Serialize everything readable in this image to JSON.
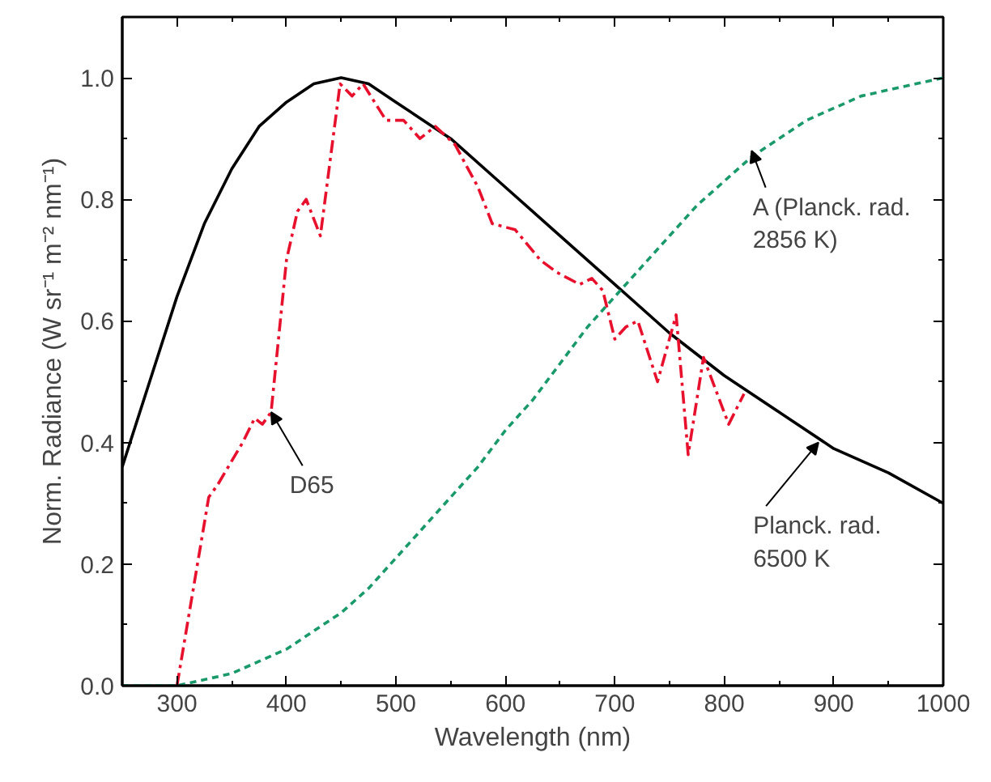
{
  "chart_data": {
    "type": "line",
    "xlabel": "Wavelength (nm)",
    "ylabel": "Norm. Radiance (W sr⁻¹ m⁻² nm⁻¹)",
    "xlim": [
      250,
      1000
    ],
    "xticks": [
      300,
      400,
      500,
      600,
      700,
      800,
      900,
      1000
    ],
    "ylim": [
      0,
      1.1
    ],
    "yticks": [
      {
        "value": 0,
        "label": "0.0"
      },
      {
        "value": 0.2,
        "label": "0.2"
      },
      {
        "value": 0.4,
        "label": "0.4"
      },
      {
        "value": 0.6,
        "label": "0.6"
      },
      {
        "value": 0.8,
        "label": "0.8"
      },
      {
        "value": 1.0,
        "label": "1.0"
      }
    ],
    "grid": false,
    "marker": "none",
    "series": [
      {
        "color": "#000000",
        "line_style": "solid",
        "x": [
          250,
          275,
          300,
          325,
          350,
          375,
          400,
          425,
          450,
          475,
          500,
          525,
          550,
          600,
          650,
          700,
          750,
          800,
          850,
          900,
          950,
          1000
        ],
        "values": [
          0.36,
          0.5,
          0.64,
          0.76,
          0.85,
          0.92,
          0.96,
          0.99,
          1.0,
          0.99,
          0.96,
          0.93,
          0.9,
          0.82,
          0.74,
          0.66,
          0.58,
          0.51,
          0.45,
          0.39,
          0.35,
          0.3
        ]
      },
      {
        "color": "#e8112d",
        "line_style": "dashdot",
        "x": [
          300,
          329,
          337,
          360,
          371,
          378,
          386,
          400,
          410,
          418,
          431,
          449,
          460,
          470,
          491,
          507,
          522,
          536,
          554,
          575,
          588,
          609,
          632,
          647,
          668,
          679,
          689,
          700,
          710,
          721,
          739,
          756,
          767,
          781,
          804,
          818
        ],
        "values": [
          0,
          0.31,
          0.33,
          0.4,
          0.44,
          0.43,
          0.45,
          0.7,
          0.78,
          0.8,
          0.74,
          0.99,
          0.97,
          0.99,
          0.93,
          0.93,
          0.9,
          0.92,
          0.89,
          0.82,
          0.76,
          0.75,
          0.7,
          0.68,
          0.66,
          0.67,
          0.65,
          0.57,
          0.59,
          0.6,
          0.5,
          0.61,
          0.38,
          0.54,
          0.43,
          0.48
        ]
      },
      {
        "color": "#1a9a6a",
        "line_style": "dashed",
        "x": [
          250,
          300,
          350,
          375,
          400,
          425,
          450,
          475,
          500,
          525,
          550,
          575,
          600,
          625,
          650,
          675,
          700,
          725,
          750,
          775,
          800,
          825,
          850,
          875,
          900,
          925,
          950,
          975,
          1000
        ],
        "values": [
          0,
          0,
          0.02,
          0.04,
          0.06,
          0.09,
          0.12,
          0.16,
          0.21,
          0.26,
          0.31,
          0.36,
          0.42,
          0.47,
          0.53,
          0.59,
          0.64,
          0.69,
          0.74,
          0.79,
          0.83,
          0.87,
          0.9,
          0.93,
          0.95,
          0.97,
          0.98,
          0.99,
          1.0
        ]
      }
    ],
    "annotations": [
      {
        "text": "D65",
        "x": 386,
        "y": 0.45
      },
      {
        "text": "A (Planck. rad.\n2856 K)",
        "x": 825,
        "y": 0.88
      },
      {
        "text": "Planck. rad.\n6500 K",
        "x": 886,
        "y": 0.4
      }
    ]
  }
}
